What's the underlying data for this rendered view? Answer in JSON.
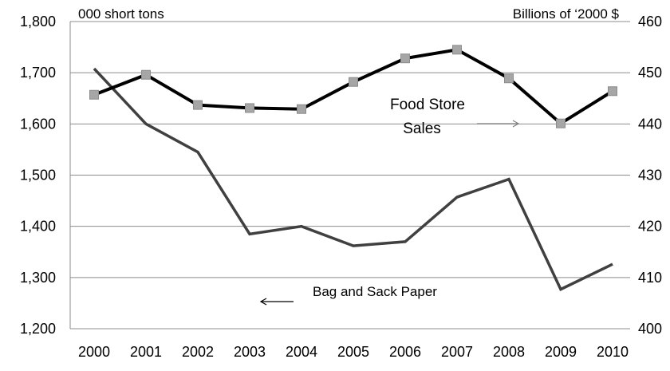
{
  "chart_data": {
    "type": "line",
    "x": [
      "2000",
      "2001",
      "2002",
      "2003",
      "2004",
      "2005",
      "2006",
      "2007",
      "2008",
      "2009",
      "2010"
    ],
    "left_axis": {
      "unit": "000 short tons",
      "ylim": [
        1200,
        1800
      ],
      "ticks": [
        "1,200",
        "1,300",
        "1,400",
        "1,500",
        "1,600",
        "1,700",
        "1,800"
      ]
    },
    "right_axis": {
      "unit": "Billions of ‘2000 $",
      "ylim": [
        400,
        460
      ],
      "ticks": [
        "400",
        "410",
        "420",
        "430",
        "440",
        "450",
        "460"
      ]
    },
    "series": [
      {
        "name": "Food Store Sales",
        "axis": "right",
        "color": "#000000",
        "marker": "square",
        "marker_color": "#a6a6a6",
        "values": [
          445.7,
          449.6,
          443.7,
          443.1,
          442.9,
          448.2,
          452.8,
          454.5,
          448.9,
          440.1,
          446.4
        ]
      },
      {
        "name": "Bag and Sack Paper",
        "axis": "left",
        "color": "#404040",
        "values": [
          1708,
          1600,
          1545,
          1385,
          1400,
          1362,
          1370,
          1457,
          1492,
          1277,
          1326
        ]
      }
    ],
    "annotations": {
      "food_line1": "Food Store",
      "food_line2": "Sales",
      "bag": "Bag and Sack Paper"
    },
    "grid": "horizontal"
  }
}
